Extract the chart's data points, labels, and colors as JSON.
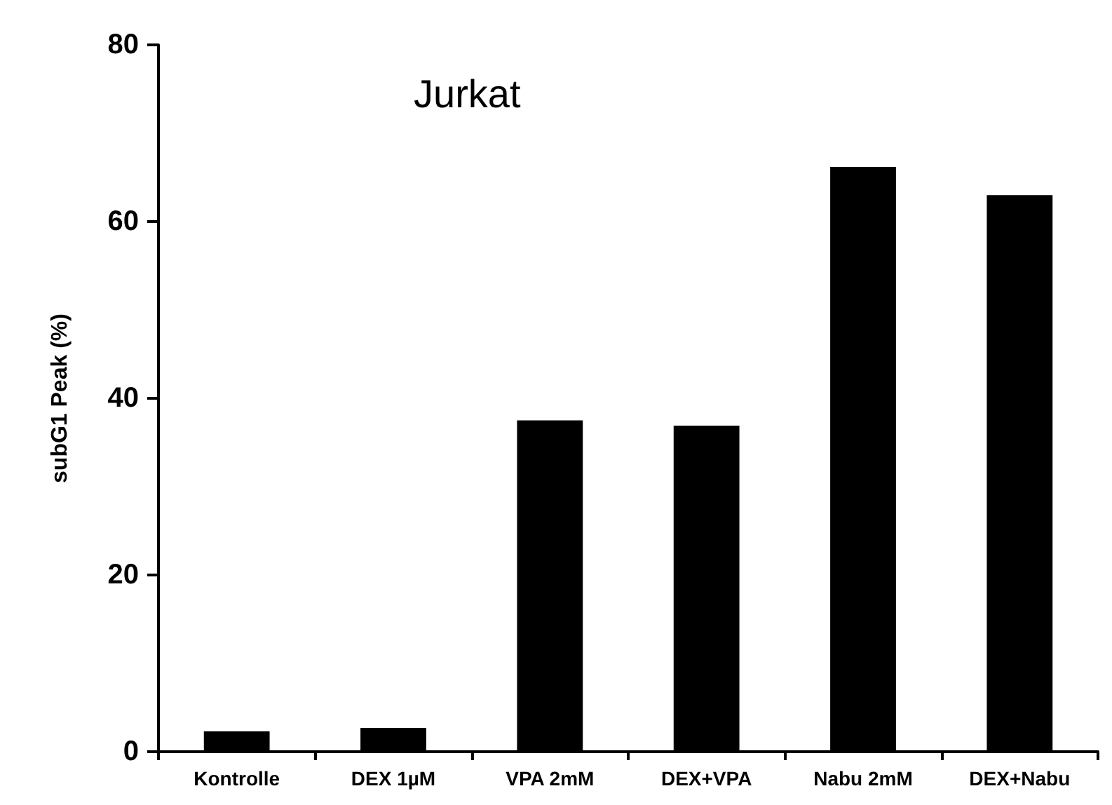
{
  "chart_data": {
    "type": "bar",
    "title": "Jurkat",
    "ylabel": "subG1 Peak (%)",
    "categories": [
      "Kontrolle",
      "DEX 1µM",
      "VPA 2mM",
      "DEX+VPA",
      "Nabu 2mM",
      "DEX+Nabu"
    ],
    "values": [
      2.3,
      2.7,
      37.5,
      36.9,
      66.2,
      63.0
    ],
    "color": "#000000",
    "ylim": [
      0,
      80
    ],
    "yticks": [
      0,
      20,
      40,
      60,
      80
    ],
    "grid": false
  }
}
